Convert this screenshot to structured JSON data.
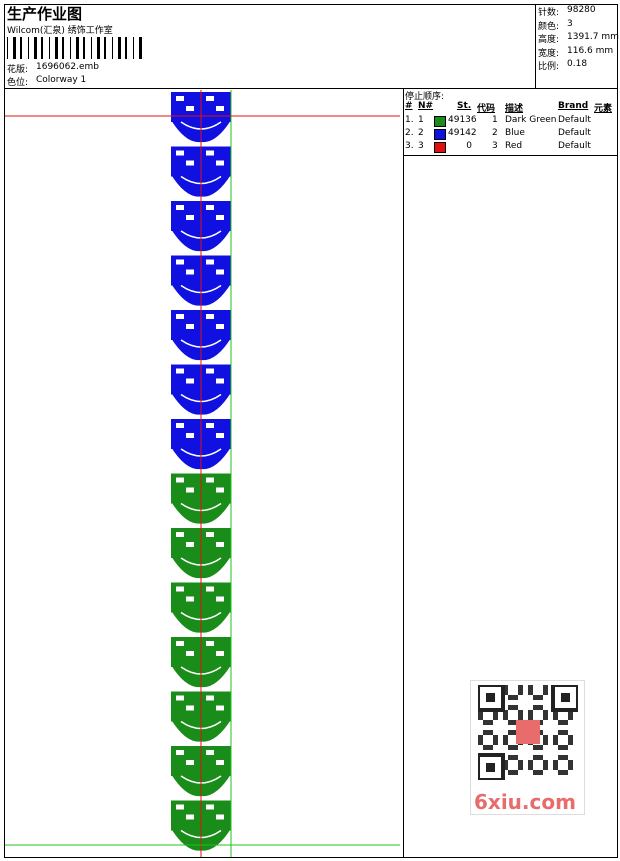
{
  "header": {
    "title": "生产作业图",
    "studio": "Wilcom(汇泉) 绣饰工作室",
    "design_label": "花版:",
    "design": "1696062.emb",
    "colorway_label": "色位:",
    "colorway": "Colorway 1"
  },
  "stats": [
    {
      "label": "针数:",
      "value": "98280"
    },
    {
      "label": "颜色:",
      "value": "3"
    },
    {
      "label": "高度:",
      "value": "1391.7 mm"
    },
    {
      "label": "宽度:",
      "value": "116.6 mm"
    },
    {
      "label": "比例:",
      "value": "0.18"
    }
  ],
  "stop_sequence": {
    "title": "停止顺序:",
    "columns": [
      "#",
      "N#",
      "St.",
      "代码",
      "描述",
      "Brand",
      "元素"
    ],
    "rows": [
      {
        "index": "1.",
        "n": "1",
        "color": "#1a8c1a",
        "stitches": 49136,
        "code": "1",
        "description": "Dark Green",
        "brand": "Default"
      },
      {
        "index": "2.",
        "n": "2",
        "color": "#1010e0",
        "stitches": 49142,
        "code": "2",
        "description": "Blue",
        "brand": "Default"
      },
      {
        "index": "3.",
        "n": "3",
        "color": "#e01010",
        "stitches": 0,
        "code": "3",
        "description": "Red",
        "brand": "Default"
      }
    ]
  },
  "watermark": "6xiu.com"
}
